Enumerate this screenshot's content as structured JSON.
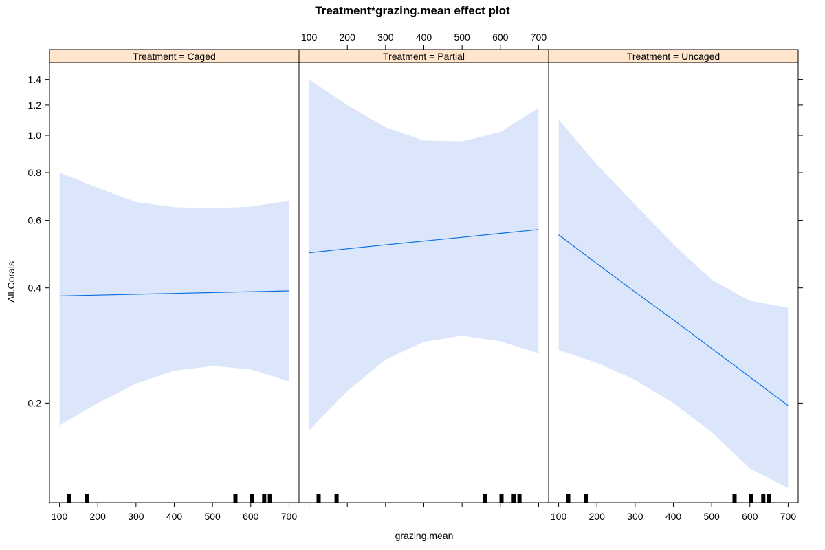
{
  "chart_data": {
    "type": "line",
    "title": "Treatment*grazing.mean effect plot",
    "xlabel": "grazing.mean",
    "ylabel": "All.Corals",
    "y_scale": "log",
    "xlim": [
      90,
      710
    ],
    "ylim": [
      0.11,
      1.55
    ],
    "x_ticks": [
      100,
      200,
      300,
      400,
      500,
      600,
      700
    ],
    "y_ticks": [
      0.2,
      0.4,
      0.6,
      0.8,
      1.0,
      1.2,
      1.4
    ],
    "y_tick_labels": [
      "0.2",
      "0.4",
      "0.6",
      "0.8",
      "1.0",
      "1.2",
      "1.4"
    ],
    "colors": {
      "line": "#0b6fe0",
      "band": "#dce6fb",
      "strip": "#ffe5cc",
      "frame": "#000000"
    },
    "rug_x": [
      125,
      172,
      560,
      603,
      635,
      650
    ],
    "panels": [
      {
        "strip": "Treatment = Caged",
        "x": [
          100,
          200,
          300,
          400,
          500,
          600,
          700
        ],
        "fit": [
          0.381,
          0.383,
          0.385,
          0.387,
          0.389,
          0.391,
          0.393
        ],
        "lower": [
          0.175,
          0.2,
          0.225,
          0.243,
          0.25,
          0.245,
          0.228
        ],
        "upper": [
          0.8,
          0.73,
          0.67,
          0.65,
          0.645,
          0.652,
          0.675
        ]
      },
      {
        "strip": "Treatment = Partial",
        "x": [
          100,
          200,
          300,
          400,
          500,
          600,
          700
        ],
        "fit": [
          0.494,
          0.506,
          0.518,
          0.53,
          0.542,
          0.555,
          0.568
        ],
        "lower": [
          0.17,
          0.215,
          0.26,
          0.289,
          0.3,
          0.29,
          0.27
        ],
        "upper": [
          1.4,
          1.2,
          1.05,
          0.97,
          0.965,
          1.02,
          1.18
        ]
      },
      {
        "strip": "Treatment = Uncaged",
        "x": [
          100,
          200,
          300,
          400,
          500,
          600,
          700
        ],
        "fit": [
          0.55,
          0.463,
          0.39,
          0.33,
          0.278,
          0.234,
          0.197
        ],
        "lower": [
          0.275,
          0.255,
          0.23,
          0.2,
          0.168,
          0.135,
          0.12
        ],
        "upper": [
          1.1,
          0.84,
          0.66,
          0.52,
          0.42,
          0.37,
          0.355
        ]
      }
    ]
  }
}
